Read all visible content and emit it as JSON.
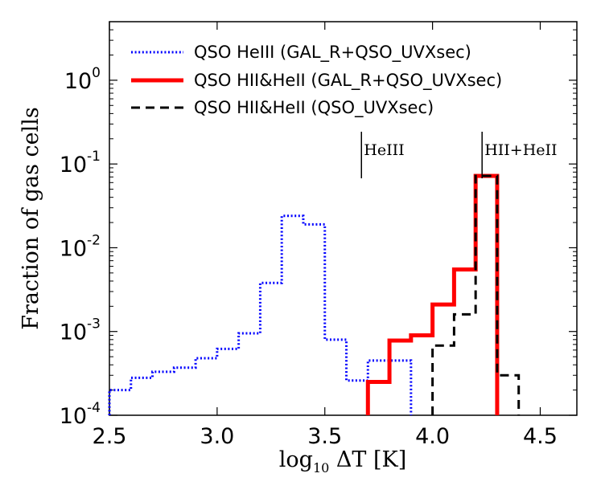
{
  "chart_data": {
    "type": "step-histogram",
    "title": "",
    "xlabel": "log₁₀ ΔT [K]",
    "xlabel_parts": {
      "base": "log",
      "sub": "10",
      "rest": " ΔT [K]"
    },
    "ylabel": "Fraction of gas cells",
    "xlim": [
      2.5,
      4.67
    ],
    "ylim": [
      0.0001,
      5.0
    ],
    "yscale": "log",
    "x_ticks": [
      "2.5",
      "3.0",
      "3.5",
      "4.0",
      "4.5"
    ],
    "y_ticks": [
      {
        "base": "10",
        "exp": "-4",
        "value": 0.0001
      },
      {
        "base": "10",
        "exp": "-3",
        "value": 0.001
      },
      {
        "base": "10",
        "exp": "-2",
        "value": 0.01
      },
      {
        "base": "10",
        "exp": "-1",
        "value": 0.1
      },
      {
        "base": "10",
        "exp": "0",
        "value": 1
      }
    ],
    "legend_position": "top-right",
    "series": [
      {
        "name": "QSO HeIII (GAL_R+QSO_UVXsec)",
        "color": "#0000ff",
        "style": "dotted",
        "bin_edges": [
          2.5,
          2.6,
          2.7,
          2.8,
          2.9,
          3.0,
          3.1,
          3.2,
          3.3,
          3.4,
          3.5,
          3.6,
          3.7,
          3.8,
          3.9
        ],
        "values": [
          0.0002,
          0.00028,
          0.00033,
          0.00037,
          0.00048,
          0.00062,
          0.00095,
          0.0038,
          0.024,
          0.019,
          0.0008,
          0.00026,
          0.00045,
          0.00045
        ]
      },
      {
        "name": "QSO HII&HeII (GAL_R+QSO_UVXsec)",
        "color": "#ff0000",
        "style": "solid",
        "bin_edges": [
          3.7,
          3.8,
          3.9,
          4.0,
          4.1,
          4.2,
          4.3
        ],
        "values": [
          0.00025,
          0.00078,
          0.0009,
          0.0021,
          0.0055,
          0.072
        ]
      },
      {
        "name": "QSO HII&HeII (QSO_UVXsec)",
        "color": "#000000",
        "style": "dashed",
        "bin_edges": [
          4.0,
          4.1,
          4.2,
          4.3,
          4.4
        ],
        "values": [
          0.00068,
          0.0016,
          0.072,
          0.0003
        ]
      }
    ],
    "annotations": [
      {
        "label": "HeIII",
        "x": 3.67
      },
      {
        "label": "HII+HeII",
        "x": 4.23
      }
    ]
  }
}
